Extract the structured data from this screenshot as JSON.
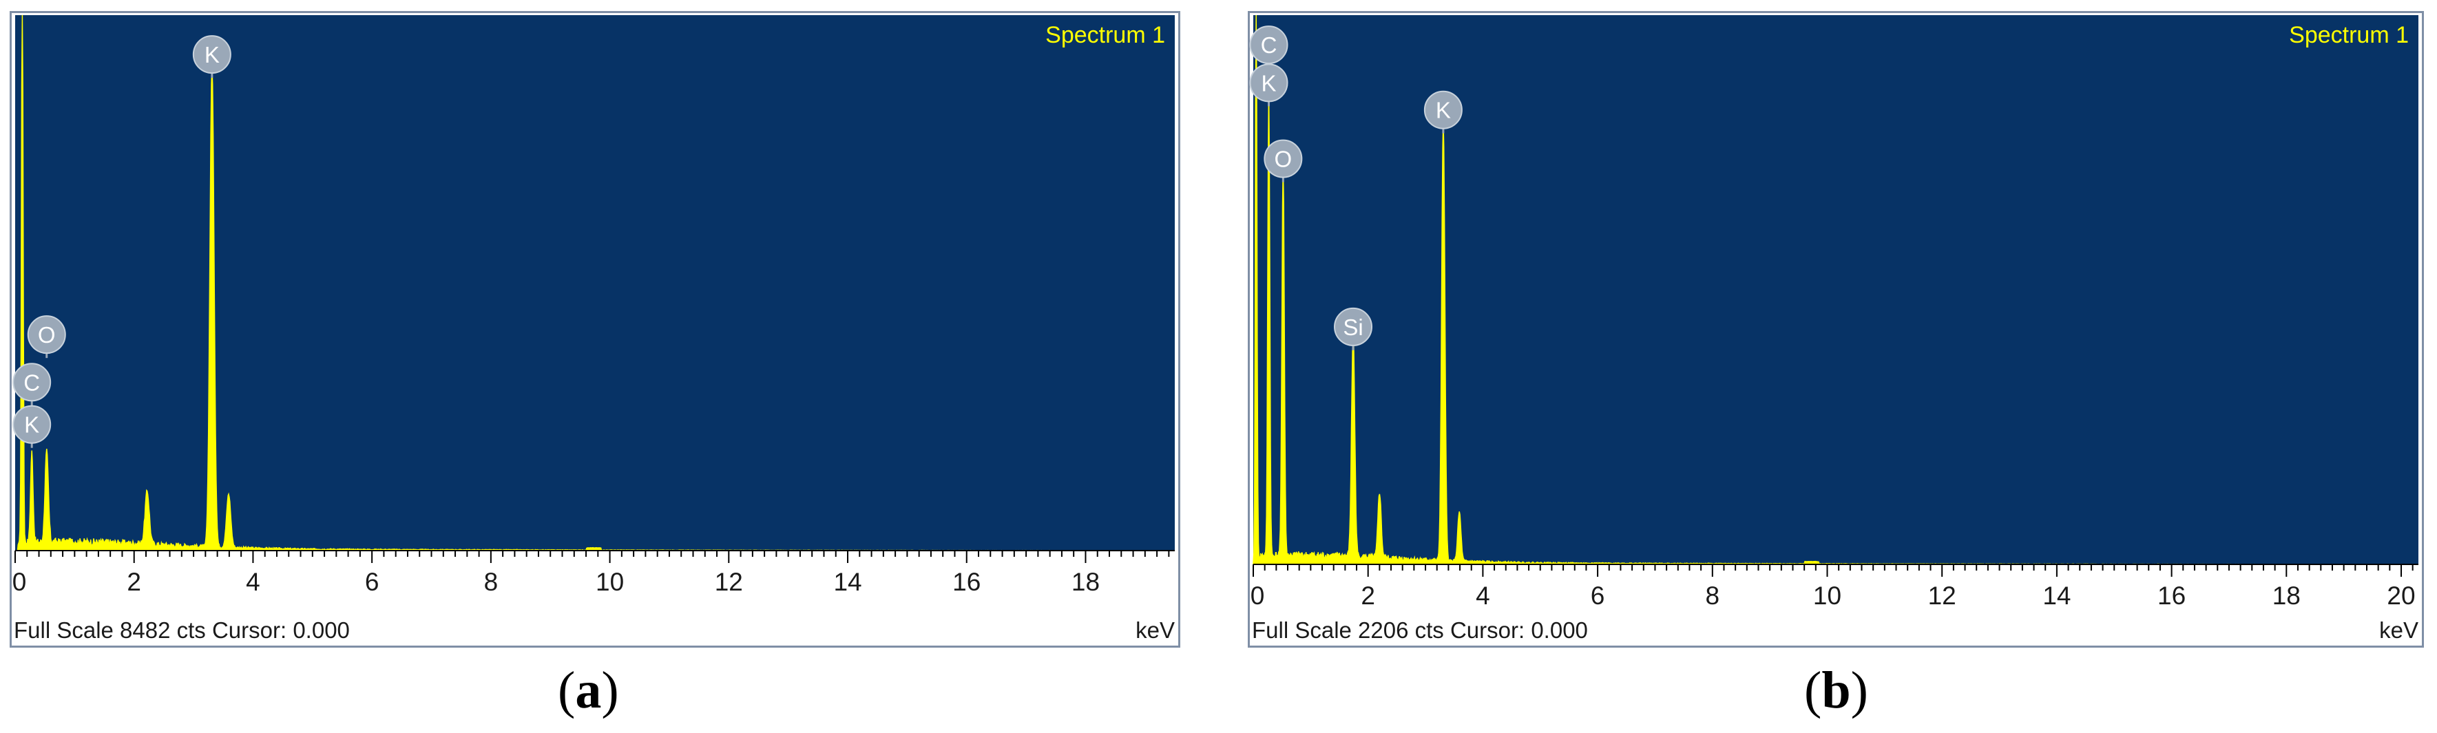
{
  "chart_data": [
    {
      "type": "line",
      "panel": "a",
      "caption_letter": "a",
      "spectrum_label": "Spectrum 1",
      "status_text": "Full Scale 8482 cts Cursor: 0.000",
      "xlabel": "keV",
      "xlim": [
        0,
        19.5
      ],
      "x_ticks": [
        0,
        2,
        4,
        6,
        8,
        10,
        12,
        14,
        16,
        18
      ],
      "tick_labels": [
        "0",
        "2",
        "4",
        "6",
        "8",
        "10",
        "12",
        "14",
        "16",
        "18"
      ],
      "full_scale_counts": 8482,
      "peaks": [
        {
          "kev": 0.12,
          "rel_height": 1.1,
          "width": 0.02
        },
        {
          "kev": 0.28,
          "rel_height": 0.17,
          "width": 0.03
        },
        {
          "kev": 0.53,
          "rel_height": 0.17,
          "width": 0.04
        },
        {
          "kev": 2.22,
          "rel_height": 0.1,
          "width": 0.05
        },
        {
          "kev": 3.31,
          "rel_height": 0.91,
          "width": 0.05
        },
        {
          "kev": 3.59,
          "rel_height": 0.1,
          "width": 0.05
        }
      ],
      "labels": [
        {
          "element": "K",
          "kev": 3.31,
          "rel_height": 0.91
        },
        {
          "element": "O",
          "kev": 0.53,
          "rel_height": 0.38
        },
        {
          "element": "C",
          "kev": 0.28,
          "rel_height": 0.29
        },
        {
          "element": "K",
          "kev": 0.28,
          "rel_height": 0.21
        }
      ]
    },
    {
      "type": "line",
      "panel": "b",
      "caption_letter": "b",
      "spectrum_label": "Spectrum 1",
      "status_text": "Full Scale 2206 cts Cursor: 0.000",
      "xlabel": "keV",
      "xlim": [
        0,
        20.3
      ],
      "x_ticks": [
        0,
        2,
        4,
        6,
        8,
        10,
        12,
        14,
        16,
        18,
        20
      ],
      "tick_labels": [
        "0",
        "2",
        "4",
        "6",
        "8",
        "10",
        "12",
        "14",
        "16",
        "18",
        "20"
      ],
      "full_scale_counts": 2206,
      "peaks": [
        {
          "kev": 0.05,
          "rel_height": 1.1,
          "width": 0.02
        },
        {
          "kev": 0.27,
          "rel_height": 0.87,
          "width": 0.025
        },
        {
          "kev": 0.52,
          "rel_height": 0.72,
          "width": 0.03
        },
        {
          "kev": 1.74,
          "rel_height": 0.41,
          "width": 0.04
        },
        {
          "kev": 2.2,
          "rel_height": 0.12,
          "width": 0.04
        },
        {
          "kev": 3.31,
          "rel_height": 0.81,
          "width": 0.04
        },
        {
          "kev": 3.59,
          "rel_height": 0.09,
          "width": 0.04
        }
      ],
      "labels": [
        {
          "element": "C",
          "kev": 0.27,
          "rel_height": 0.93
        },
        {
          "element": "K",
          "kev": 0.27,
          "rel_height": 0.86
        },
        {
          "element": "K",
          "kev": 3.31,
          "rel_height": 0.81
        },
        {
          "element": "O",
          "kev": 0.52,
          "rel_height": 0.72
        },
        {
          "element": "Si",
          "kev": 1.74,
          "rel_height": 0.41
        }
      ]
    }
  ],
  "colors": {
    "plot_background": "#073366",
    "spectrum": "#ffff00",
    "label_badge": "#9aa8b8",
    "label_text": "#ffffff",
    "spectrum_label_text": "#ffff00"
  }
}
